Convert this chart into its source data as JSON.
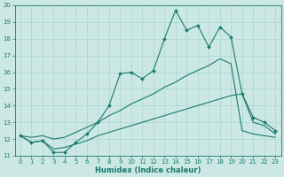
{
  "xlabel": "Humidex (Indice chaleur)",
  "x_values": [
    0,
    1,
    2,
    3,
    4,
    5,
    6,
    7,
    8,
    9,
    10,
    11,
    12,
    13,
    14,
    15,
    16,
    17,
    18,
    19,
    20,
    21,
    22,
    23
  ],
  "line1": [
    12.2,
    11.8,
    11.9,
    11.2,
    11.2,
    11.8,
    12.3,
    13.0,
    14.0,
    15.9,
    16.0,
    15.6,
    16.1,
    18.0,
    19.7,
    18.5,
    18.8,
    17.5,
    18.7,
    18.1,
    14.7,
    13.3,
    13.0,
    12.5
  ],
  "line2": [
    12.2,
    12.1,
    12.2,
    12.0,
    12.1,
    12.4,
    12.7,
    13.0,
    13.4,
    13.7,
    14.1,
    14.4,
    14.7,
    15.1,
    15.4,
    15.8,
    16.1,
    16.4,
    16.8,
    16.5,
    12.5,
    12.3,
    12.2,
    12.1
  ],
  "line3": [
    12.2,
    11.8,
    11.9,
    11.4,
    11.5,
    11.7,
    11.9,
    12.2,
    12.4,
    12.6,
    12.8,
    13.0,
    13.2,
    13.4,
    13.6,
    13.8,
    14.0,
    14.2,
    14.4,
    14.6,
    14.7,
    13.0,
    12.8,
    12.3
  ],
  "line_color": "#1a7a6e",
  "bg_color": "#cce8e4",
  "grid_color": "#aad4d0",
  "ylim": [
    11,
    20
  ],
  "yticks": [
    11,
    12,
    13,
    14,
    15,
    16,
    17,
    18,
    19,
    20
  ],
  "xticks": [
    0,
    1,
    2,
    3,
    4,
    5,
    6,
    7,
    8,
    9,
    10,
    11,
    12,
    13,
    14,
    15,
    16,
    17,
    18,
    19,
    20,
    21,
    22,
    23
  ],
  "tick_fontsize": 5.0,
  "xlabel_fontsize": 6.0
}
